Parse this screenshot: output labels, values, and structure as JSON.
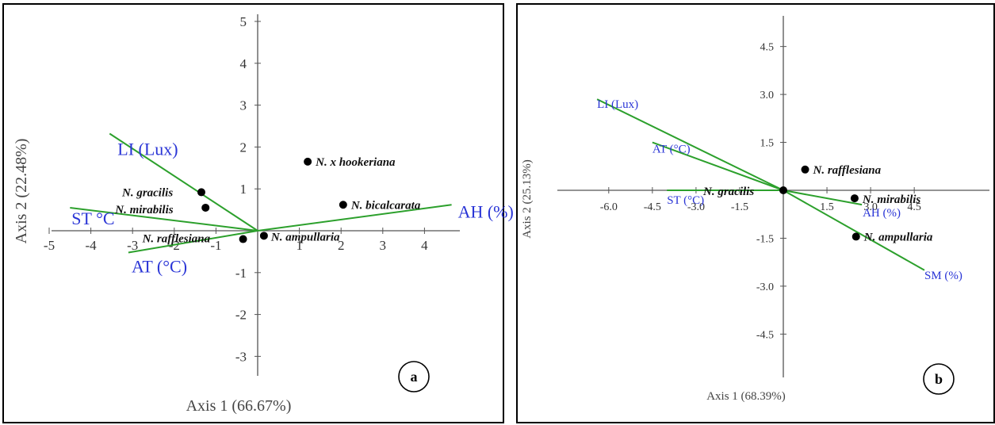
{
  "chart_data": [
    {
      "type": "scatter",
      "panel_label": "a",
      "xlabel": "Axis 1 (66.67%)",
      "ylabel": "Axis 2 (22.48%)",
      "xlim": [
        -5.2,
        5
      ],
      "ylim": [
        -3.4,
        5.3
      ],
      "x_ticks": [
        "-5",
        "-4",
        "-3",
        "-2",
        "-1",
        "1",
        "2",
        "3",
        "4"
      ],
      "y_ticks": [
        "-3",
        "-2",
        "-1",
        "1",
        "2",
        "3",
        "4",
        "5"
      ],
      "points": [
        {
          "name": "N. x hookeriana",
          "x": 1.2,
          "y": 1.65
        },
        {
          "name": "N. bicalcarata",
          "x": 2.05,
          "y": 0.62
        },
        {
          "name": "N. gracilis",
          "x": -1.35,
          "y": 0.92
        },
        {
          "name": "N. mirabilis",
          "x": -1.25,
          "y": 0.55
        },
        {
          "name": "N. rafflesiana",
          "x": -0.35,
          "y": -0.2
        },
        {
          "name": "N. ampullaria",
          "x": 0.15,
          "y": -0.12
        }
      ],
      "vectors": [
        {
          "name": "LI (Lux)",
          "x": -3.55,
          "y": 2.32
        },
        {
          "name": "ST °C",
          "x": -4.5,
          "y": 0.55
        },
        {
          "name": "AT (°C)",
          "x": -3.1,
          "y": -0.52
        },
        {
          "name": "AH (%)",
          "x": 4.65,
          "y": 0.62
        }
      ]
    },
    {
      "type": "scatter",
      "panel_label": "b",
      "xlabel": "Axis 1 (68.39%)",
      "ylabel": "Axis 2 (25.13%)",
      "xlim": [
        -6.7,
        5.0
      ],
      "ylim": [
        -5.4,
        5.8
      ],
      "x_ticks": [
        "-6.0",
        "-4.5",
        "-3.0",
        "-1.5",
        "1.5",
        "3.0",
        "4.5"
      ],
      "y_ticks": [
        "-4.5",
        "-3.0",
        "-1.5",
        "1.5",
        "3.0",
        "4.5"
      ],
      "points": [
        {
          "name": "N. rafflesiana",
          "x": 0.75,
          "y": 0.65
        },
        {
          "name": "N. gracilis",
          "x": 0.0,
          "y": 0.0
        },
        {
          "name": "N. mirabilis",
          "x": 2.45,
          "y": -0.25
        },
        {
          "name": "N. ampullaria",
          "x": 2.5,
          "y": -1.45
        }
      ],
      "vectors": [
        {
          "name": "LI (Lux)",
          "x": -6.4,
          "y": 2.85
        },
        {
          "name": "AT (°C)",
          "x": -4.5,
          "y": 1.5
        },
        {
          "name": "ST (°C)",
          "x": -4.0,
          "y": 0.0
        },
        {
          "name": "AH (%)",
          "x": 2.7,
          "y": -0.45
        },
        {
          "name": "SM (%)",
          "x": 4.85,
          "y": -2.5
        }
      ]
    }
  ],
  "colors": {
    "vector": "#2ca02c",
    "vector_label": "#2a35d6",
    "axis": "#555555",
    "point": "#000000"
  }
}
